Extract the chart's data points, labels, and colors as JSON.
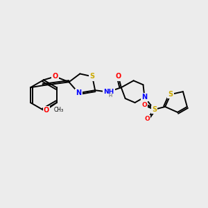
{
  "bg_color": "#ececec",
  "bond_color": "#000000",
  "bond_width": 1.4,
  "atom_colors": {
    "S": "#ccaa00",
    "N": "#0000ff",
    "O": "#ff0000",
    "C": "#000000",
    "H": "#555555"
  },
  "figsize": [
    3.0,
    3.0
  ],
  "dpi": 100
}
